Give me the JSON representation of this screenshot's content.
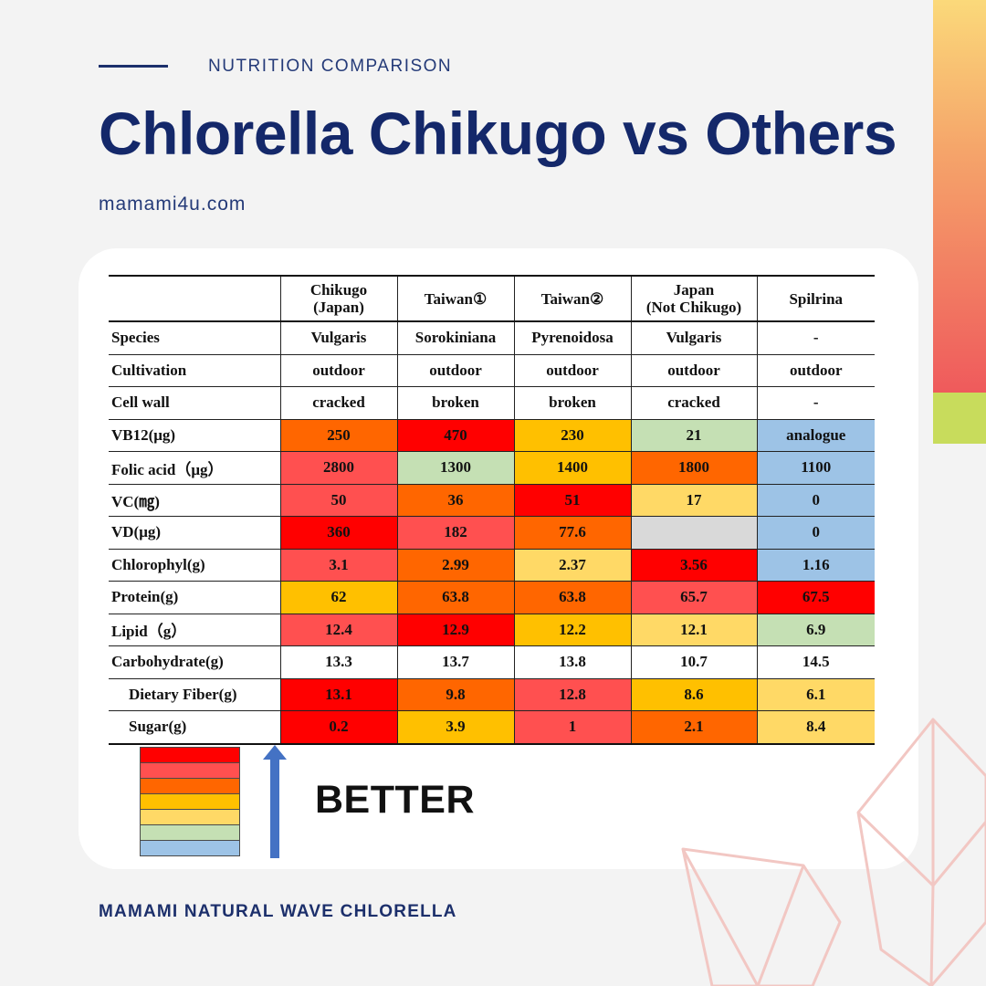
{
  "header": {
    "kicker": "NUTRITION COMPARISON",
    "title": "Chlorella Chikugo vs Others",
    "site": "mamami4u.com"
  },
  "footer": {
    "brand": "MAMAMI NATURAL WAVE CHLORELLA"
  },
  "colors": {
    "navy": "#14286a",
    "rank_1_best": "#ff0000",
    "rank_2": "#ff5050",
    "rank_3": "#ff6600",
    "rank_4": "#ffc000",
    "rank_5": "#ffd966",
    "rank_6": "#c5e0b4",
    "rank_7_worst": "#9dc3e6",
    "na": "#d9d9d9",
    "none": "#ffffff"
  },
  "table": {
    "columns": [
      "Chikugo\n(Japan)",
      "Taiwan①",
      "Taiwan②",
      "Japan\n(Not Chikugo)",
      "Spilrina"
    ],
    "rows": [
      {
        "label": "Species",
        "sub": false,
        "cells": [
          [
            "Vulgaris",
            ""
          ],
          [
            "Sorokiniana",
            ""
          ],
          [
            "Pyrenoidosa",
            ""
          ],
          [
            "Vulgaris",
            ""
          ],
          [
            "-",
            ""
          ]
        ]
      },
      {
        "label": "Cultivation",
        "sub": false,
        "cells": [
          [
            "outdoor",
            ""
          ],
          [
            "outdoor",
            ""
          ],
          [
            "outdoor",
            ""
          ],
          [
            "outdoor",
            ""
          ],
          [
            "outdoor",
            ""
          ]
        ]
      },
      {
        "label": "Cell wall",
        "sub": false,
        "cells": [
          [
            "cracked",
            ""
          ],
          [
            "broken",
            ""
          ],
          [
            "broken",
            ""
          ],
          [
            "cracked",
            ""
          ],
          [
            "-",
            ""
          ]
        ]
      },
      {
        "label": "VB12(μg)",
        "sub": false,
        "cells": [
          [
            "250",
            "#ff6600"
          ],
          [
            "470",
            "#ff0000"
          ],
          [
            "230",
            "#ffc000"
          ],
          [
            "21",
            "#c5e0b4"
          ],
          [
            "analogue",
            "#9dc3e6"
          ]
        ]
      },
      {
        "label": "Folic acid（μg）",
        "sub": false,
        "cells": [
          [
            "2800",
            "#ff5050"
          ],
          [
            "1300",
            "#c5e0b4"
          ],
          [
            "1400",
            "#ffc000"
          ],
          [
            "1800",
            "#ff6600"
          ],
          [
            "1100",
            "#9dc3e6"
          ]
        ]
      },
      {
        "label": "VC(㎎)",
        "sub": false,
        "cells": [
          [
            "50",
            "#ff5050"
          ],
          [
            "36",
            "#ff6600"
          ],
          [
            "51",
            "#ff0000"
          ],
          [
            "17",
            "#ffd966"
          ],
          [
            "0",
            "#9dc3e6"
          ]
        ]
      },
      {
        "label": "VD(μg)",
        "sub": false,
        "cells": [
          [
            "360",
            "#ff0000"
          ],
          [
            "182",
            "#ff5050"
          ],
          [
            "77.6",
            "#ff6600"
          ],
          [
            "",
            "#d9d9d9"
          ],
          [
            "0",
            "#9dc3e6"
          ]
        ]
      },
      {
        "label": "Chlorophyl(g)",
        "sub": false,
        "cells": [
          [
            "3.1",
            "#ff5050"
          ],
          [
            "2.99",
            "#ff6600"
          ],
          [
            "2.37",
            "#ffd966"
          ],
          [
            "3.56",
            "#ff0000"
          ],
          [
            "1.16",
            "#9dc3e6"
          ]
        ]
      },
      {
        "label": "Protein(g)",
        "sub": false,
        "cells": [
          [
            "62",
            "#ffc000"
          ],
          [
            "63.8",
            "#ff6600"
          ],
          [
            "63.8",
            "#ff6600"
          ],
          [
            "65.7",
            "#ff5050"
          ],
          [
            "67.5",
            "#ff0000"
          ]
        ]
      },
      {
        "label": "Lipid（g）",
        "sub": false,
        "cells": [
          [
            "12.4",
            "#ff5050"
          ],
          [
            "12.9",
            "#ff0000"
          ],
          [
            "12.2",
            "#ffc000"
          ],
          [
            "12.1",
            "#ffd966"
          ],
          [
            "6.9",
            "#c5e0b4"
          ]
        ]
      },
      {
        "label": "Carbohydrate(g)",
        "sub": false,
        "cells": [
          [
            "13.3",
            ""
          ],
          [
            "13.7",
            ""
          ],
          [
            "13.8",
            ""
          ],
          [
            "10.7",
            ""
          ],
          [
            "14.5",
            ""
          ]
        ]
      },
      {
        "label": "Dietary Fiber(g)",
        "sub": true,
        "cells": [
          [
            "13.1",
            "#ff0000"
          ],
          [
            "9.8",
            "#ff6600"
          ],
          [
            "12.8",
            "#ff5050"
          ],
          [
            "8.6",
            "#ffc000"
          ],
          [
            "6.1",
            "#ffd966"
          ]
        ]
      },
      {
        "label": "Sugar(g)",
        "sub": true,
        "cells": [
          [
            "0.2",
            "#ff0000"
          ],
          [
            "3.9",
            "#ffc000"
          ],
          [
            "1",
            "#ff5050"
          ],
          [
            "2.1",
            "#ff6600"
          ],
          [
            "8.4",
            "#ffd966"
          ]
        ]
      }
    ]
  },
  "legend": {
    "scale": [
      "#ff0000",
      "#ff5050",
      "#ff6600",
      "#ffc000",
      "#ffd966",
      "#c5e0b4",
      "#9dc3e6"
    ],
    "arrow_icon": "up-arrow-icon",
    "label": "BETTER"
  }
}
